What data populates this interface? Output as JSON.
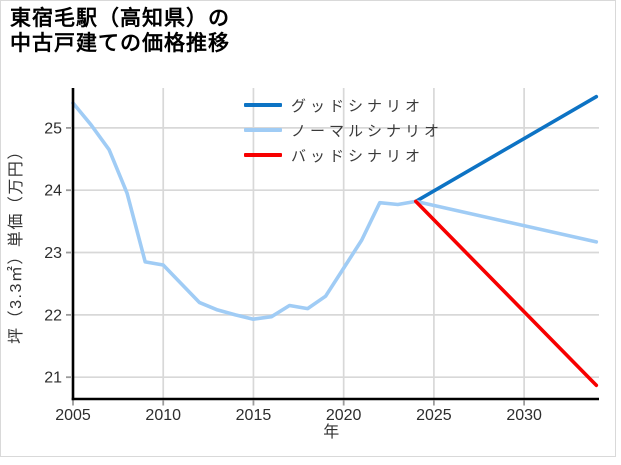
{
  "title": {
    "line1": "東宿毛駅（高知県）の",
    "line2": "中古戸建ての価格推移"
  },
  "chart_data": {
    "type": "line",
    "title": "東宿毛駅（高知県）の中古戸建ての価格推移",
    "xlabel": "年",
    "ylabel": "坪（3.3㎡）単価（万円）",
    "xlim": [
      2005,
      2034.15
    ],
    "ylim": [
      20.65,
      25.64
    ],
    "xticks": [
      2005,
      2010,
      2015,
      2020,
      2025,
      2030
    ],
    "yticks": [
      21,
      22,
      23,
      24,
      25
    ],
    "grid": true,
    "grid_color": "#d8d8d8",
    "legend_position": "upper center",
    "legend": [
      {
        "label": "グッドシナリオ",
        "color": "#0d73c4"
      },
      {
        "label": "ノーマルシナリオ",
        "color": "#a0ccf5"
      },
      {
        "label": "バッドシナリオ",
        "color": "#f70000"
      }
    ],
    "series": [
      {
        "name": "history",
        "color": "#a0ccf5",
        "x": [
          2005,
          2006,
          2007,
          2008,
          2009,
          2010,
          2011,
          2012,
          2013,
          2014,
          2015,
          2016,
          2017,
          2018,
          2019,
          2020,
          2021,
          2022,
          2023,
          2024
        ],
        "y": [
          25.4,
          25.05,
          24.65,
          23.95,
          22.85,
          22.8,
          22.5,
          22.2,
          22.08,
          22.0,
          21.93,
          21.97,
          22.15,
          22.1,
          22.3,
          22.75,
          23.2,
          23.8,
          23.77,
          23.82
        ]
      },
      {
        "name": "good-scenario",
        "label": "グッドシナリオ",
        "color": "#0d73c4",
        "x": [
          2024,
          2034
        ],
        "y": [
          23.82,
          25.5
        ]
      },
      {
        "name": "normal-scenario",
        "label": "ノーマルシナリオ",
        "color": "#a0ccf5",
        "x": [
          2024,
          2034
        ],
        "y": [
          23.82,
          23.17
        ]
      },
      {
        "name": "bad-scenario",
        "label": "バッドシナリオ",
        "color": "#f70000",
        "x": [
          2024,
          2034
        ],
        "y": [
          23.82,
          20.87
        ]
      }
    ]
  }
}
